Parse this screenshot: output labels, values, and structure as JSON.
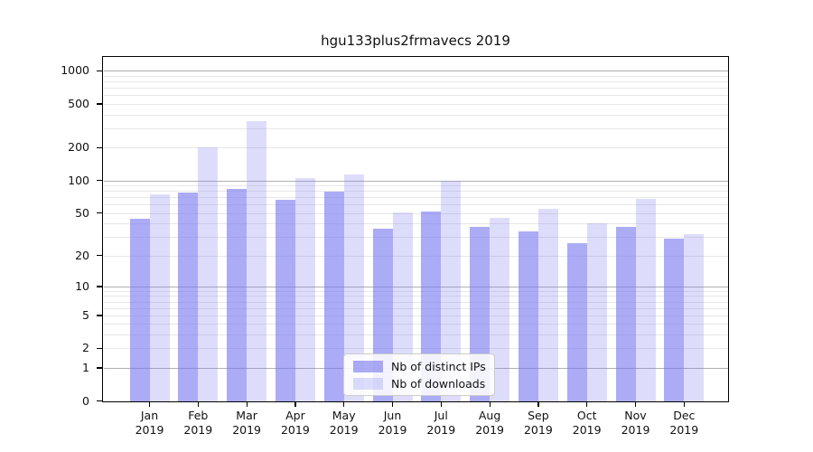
{
  "chart_data": {
    "type": "bar",
    "title": "hgu133plus2frmavecs 2019",
    "year_label": "2019",
    "categories": [
      "Jan",
      "Feb",
      "Mar",
      "Apr",
      "May",
      "Jun",
      "Jul",
      "Aug",
      "Sep",
      "Oct",
      "Nov",
      "Dec"
    ],
    "series": [
      {
        "name": "Nb of distinct IPs",
        "color": "rgba(120,120,240,0.62)",
        "values": [
          44,
          77,
          84,
          66,
          79,
          36,
          52,
          37,
          34,
          26,
          37,
          29
        ]
      },
      {
        "name": "Nb of downloads",
        "color": "rgba(120,120,240,0.25)",
        "values": [
          75,
          200,
          350,
          105,
          113,
          51,
          100,
          45,
          55,
          40,
          68,
          32
        ]
      }
    ],
    "y_axis": {
      "scale": "log10(1+x)",
      "tick_values": [
        0,
        1,
        2,
        5,
        10,
        20,
        50,
        100,
        200,
        500,
        1000
      ],
      "ylim": [
        0,
        1000
      ],
      "grid": true
    },
    "legend": {
      "entries": [
        "Nb of distinct IPs",
        "Nb of downloads"
      ],
      "position": "lower-center-inside"
    },
    "colors": {
      "bar_distinct_ips_rendered": "#ababf5",
      "bar_downloads_rendered": "#ddddfb",
      "major_gridline": "#b0b0b0",
      "minor_gridline": "#e7e7e7",
      "axis": "#000000",
      "background": "#ffffff"
    }
  }
}
